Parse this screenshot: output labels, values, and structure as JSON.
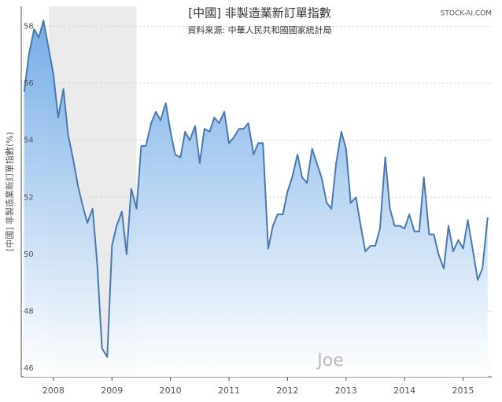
{
  "chart_data": {
    "type": "area",
    "title": "[中國] 非製造業新訂單指數",
    "subtitle": "資料來源: 中華人民共和國國家統計局",
    "y_label": "[中國] 非製造業新訂單指數(%)",
    "brand": "STOCK-AI.COM",
    "watermark": "Joe",
    "x": [
      2007.5,
      2007.58,
      2007.67,
      2007.75,
      2007.83,
      2007.92,
      2008.0,
      2008.08,
      2008.17,
      2008.25,
      2008.33,
      2008.42,
      2008.5,
      2008.58,
      2008.67,
      2008.75,
      2008.83,
      2008.92,
      2009.0,
      2009.08,
      2009.17,
      2009.25,
      2009.33,
      2009.42,
      2009.5,
      2009.58,
      2009.67,
      2009.75,
      2009.83,
      2009.92,
      2010.0,
      2010.08,
      2010.17,
      2010.25,
      2010.33,
      2010.42,
      2010.5,
      2010.58,
      2010.67,
      2010.75,
      2010.83,
      2010.92,
      2011.0,
      2011.08,
      2011.17,
      2011.25,
      2011.33,
      2011.42,
      2011.5,
      2011.58,
      2011.67,
      2011.75,
      2011.83,
      2011.92,
      2012.0,
      2012.08,
      2012.17,
      2012.25,
      2012.33,
      2012.42,
      2012.5,
      2012.58,
      2012.67,
      2012.75,
      2012.83,
      2012.92,
      2013.0,
      2013.08,
      2013.17,
      2013.25,
      2013.33,
      2013.42,
      2013.5,
      2013.58,
      2013.67,
      2013.75,
      2013.83,
      2013.92,
      2014.0,
      2014.08,
      2014.17,
      2014.25,
      2014.33,
      2014.42,
      2014.5,
      2014.58,
      2014.67,
      2014.75,
      2014.83,
      2014.92,
      2015.0,
      2015.08,
      2015.17,
      2015.25,
      2015.33,
      2015.42
    ],
    "series": [
      {
        "color": "#4a78b0",
        "values": [
          55.7,
          57.0,
          57.9,
          57.6,
          58.2,
          57.2,
          56.3,
          54.8,
          55.8,
          54.2,
          53.4,
          52.4,
          51.7,
          51.1,
          51.6,
          49.6,
          46.7,
          46.4,
          50.3,
          51.0,
          51.5,
          50.0,
          52.3,
          51.6,
          53.8,
          53.8,
          54.6,
          55.0,
          54.7,
          55.3,
          54.3,
          53.5,
          53.4,
          54.3,
          54.0,
          54.5,
          53.2,
          54.4,
          54.3,
          54.8,
          54.6,
          55.0,
          53.9,
          54.1,
          54.4,
          54.4,
          54.6,
          53.5,
          53.9,
          53.9,
          50.2,
          51.0,
          51.4,
          51.4,
          52.2,
          52.7,
          53.5,
          52.7,
          52.5,
          53.7,
          53.2,
          52.7,
          51.8,
          51.6,
          53.2,
          54.3,
          53.7,
          51.8,
          52.0,
          51.0,
          50.1,
          50.3,
          50.3,
          50.9,
          53.4,
          51.6,
          51.0,
          51.0,
          50.9,
          51.4,
          50.8,
          50.8,
          52.7,
          50.7,
          50.7,
          50.0,
          49.5,
          51.0,
          50.1,
          50.5,
          50.2,
          51.2,
          50.1,
          49.1,
          49.5,
          51.3
        ]
      }
    ],
    "xlim": [
      2007.45,
      2015.49
    ],
    "xticks": [
      2008,
      2009,
      2010,
      2011,
      2012,
      2013,
      2014,
      2015
    ],
    "ylim": [
      45.7,
      58.7
    ],
    "yticks": [
      46,
      48,
      50,
      52,
      54,
      56,
      58
    ],
    "plot_band": [
      2007.92,
      2009.42
    ],
    "grid": true
  }
}
